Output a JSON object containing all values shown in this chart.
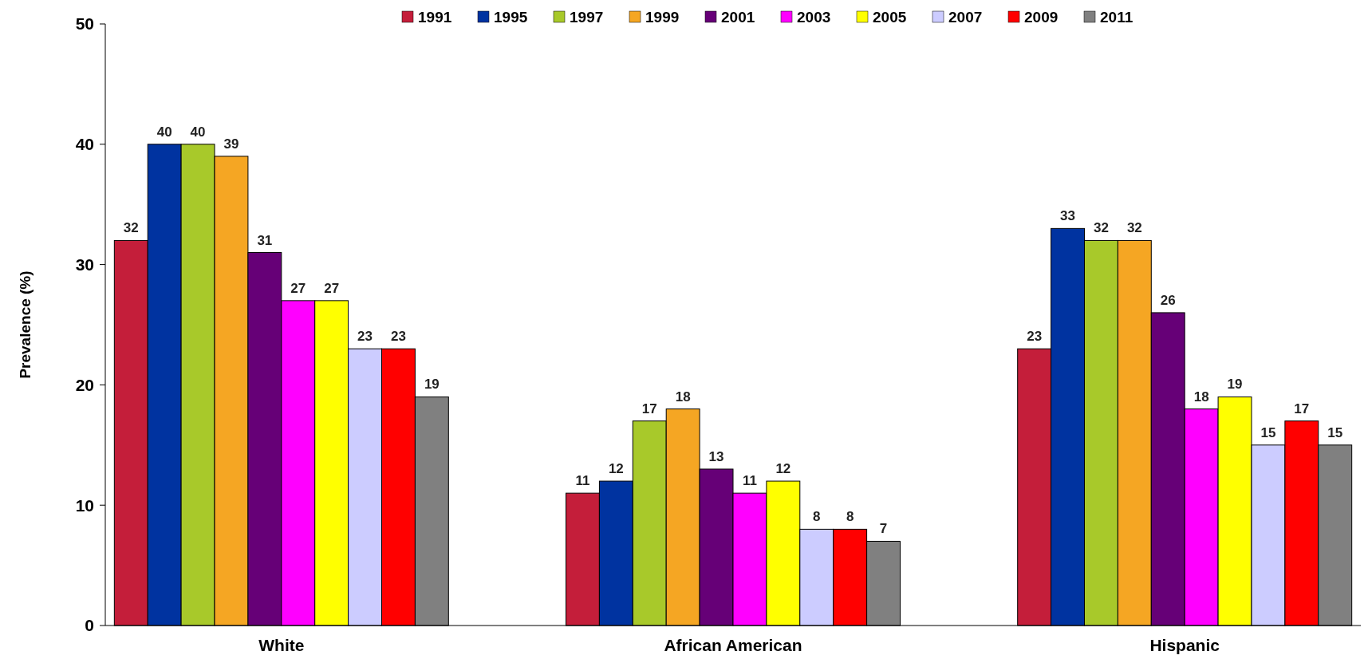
{
  "chart_data": {
    "type": "bar",
    "ylabel": "Prevalence (%)",
    "categories": [
      "White",
      "African American",
      "Hispanic"
    ],
    "series": [
      {
        "name": "1991",
        "color": "#c41e3a",
        "values": [
          32,
          11,
          23
        ]
      },
      {
        "name": "1995",
        "color": "#0033a0",
        "values": [
          40,
          12,
          33
        ]
      },
      {
        "name": "1997",
        "color": "#a8c92a",
        "values": [
          40,
          17,
          32
        ]
      },
      {
        "name": "1999",
        "color": "#f5a623",
        "values": [
          39,
          18,
          32
        ]
      },
      {
        "name": "2001",
        "color": "#660077",
        "values": [
          31,
          13,
          26
        ]
      },
      {
        "name": "2003",
        "color": "#ff00ff",
        "values": [
          27,
          11,
          18
        ]
      },
      {
        "name": "2005",
        "color": "#ffff00",
        "values": [
          27,
          12,
          19
        ]
      },
      {
        "name": "2007",
        "color": "#ccccff",
        "values": [
          23,
          8,
          15
        ]
      },
      {
        "name": "2009",
        "color": "#ff0000",
        "values": [
          23,
          8,
          17
        ]
      },
      {
        "name": "2011",
        "color": "#808080",
        "values": [
          19,
          7,
          15
        ]
      }
    ],
    "ylim": [
      0,
      50
    ],
    "yticks": [
      0,
      10,
      20,
      30,
      40,
      50
    ],
    "data_labels": true,
    "legend": "top"
  }
}
